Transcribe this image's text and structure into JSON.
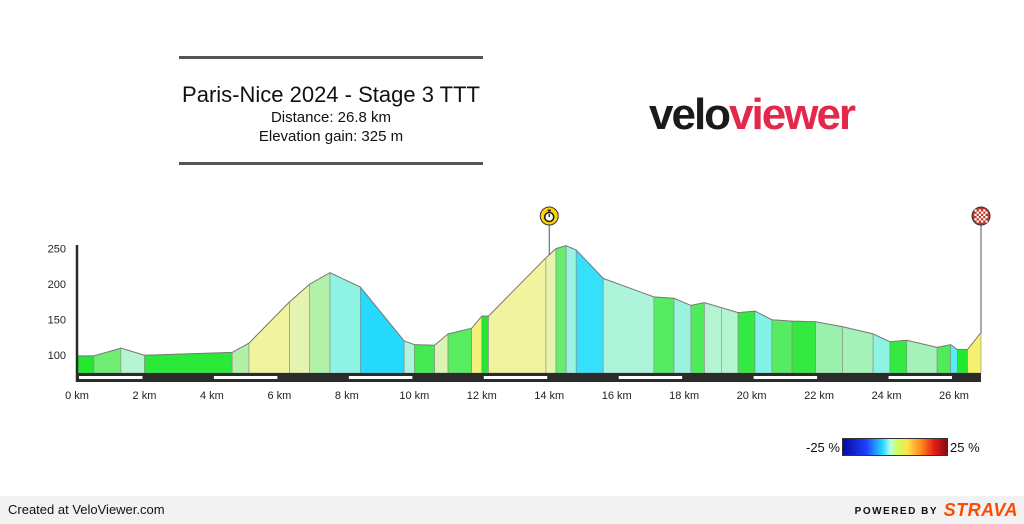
{
  "header": {
    "title": "Paris-Nice 2024 - Stage 3 TTT",
    "distance": "Distance: 26.8 km",
    "elevation_gain": "Elevation gain: 325 m"
  },
  "logo": {
    "part1": "velo",
    "part2": "viewer",
    "colors": {
      "part1": "#1a1a1a",
      "part2": "#e3284b"
    }
  },
  "legend": {
    "min_label": "-25 %",
    "max_label": "25 %"
  },
  "footer": {
    "created": "Created at VeloViewer.com",
    "powered_by": "POWERED BY",
    "brand": "STRAVA",
    "brand_color": "#fc4c02"
  },
  "markers": [
    {
      "name": "intermediate-time-check",
      "icon": "stopwatch-icon",
      "km": 14.0,
      "color": "#ffd400"
    },
    {
      "name": "finish",
      "icon": "checkered-flag-icon",
      "km": 26.8,
      "color": "#c0392b"
    }
  ],
  "chart_data": {
    "type": "area",
    "xlabel": "",
    "ylabel": "",
    "xlim": [
      0,
      26.8
    ],
    "ylim": [
      75,
      255
    ],
    "x_ticks": [
      0,
      2,
      4,
      6,
      8,
      10,
      12,
      14,
      16,
      18,
      20,
      22,
      24,
      26
    ],
    "x_tick_labels": [
      "0 km",
      "2 km",
      "4 km",
      "6 km",
      "8 km",
      "10 km",
      "12 km",
      "14 km",
      "16 km",
      "18 km",
      "20 km",
      "22 km",
      "24 km",
      "26 km"
    ],
    "y_ticks": [
      100,
      150,
      200,
      250
    ],
    "y_tick_labels": [
      "100",
      "150",
      "200",
      "250"
    ],
    "profile": [
      [
        0.0,
        99
      ],
      [
        0.5,
        99
      ],
      [
        1.3,
        110
      ],
      [
        2.0,
        100
      ],
      [
        4.6,
        104
      ],
      [
        5.1,
        117
      ],
      [
        6.3,
        175
      ],
      [
        6.9,
        200
      ],
      [
        7.5,
        216
      ],
      [
        8.4,
        196
      ],
      [
        9.7,
        120
      ],
      [
        10.0,
        115
      ],
      [
        10.6,
        114
      ],
      [
        11.0,
        130
      ],
      [
        11.7,
        138
      ],
      [
        12.0,
        155
      ],
      [
        12.2,
        155
      ],
      [
        13.9,
        237
      ],
      [
        14.2,
        250
      ],
      [
        14.5,
        254
      ],
      [
        14.8,
        248
      ],
      [
        15.6,
        208
      ],
      [
        17.1,
        182
      ],
      [
        17.7,
        180
      ],
      [
        18.2,
        170
      ],
      [
        18.6,
        174
      ],
      [
        19.1,
        167
      ],
      [
        19.6,
        160
      ],
      [
        20.1,
        162
      ],
      [
        20.6,
        150
      ],
      [
        21.2,
        148
      ],
      [
        21.9,
        147
      ],
      [
        22.7,
        140
      ],
      [
        23.6,
        130
      ],
      [
        24.1,
        119
      ],
      [
        24.6,
        121
      ],
      [
        25.5,
        111
      ],
      [
        25.9,
        115
      ],
      [
        26.1,
        108
      ],
      [
        26.4,
        108
      ],
      [
        26.8,
        132
      ]
    ],
    "segment_grades_pct": [
      0,
      1.4,
      -1.4,
      0.2,
      2.6,
      4.8,
      4.2,
      2.7,
      -2.2,
      -5.8,
      -1.7,
      -0.2,
      4.0,
      1.1,
      5.7,
      0,
      4.8,
      4.3,
      1.3,
      -2.0,
      -5.0,
      -1.7,
      -0.3,
      -2.0,
      1.0,
      -1.4,
      -1.4,
      0.4,
      -2.4,
      -0.3,
      -0.1,
      -0.9,
      -1.1,
      -2.2,
      0.4,
      -1.1,
      1.0,
      -3.5,
      0,
      6.0
    ],
    "grade_color_scale": {
      "min": -25,
      "max": 25
    }
  }
}
